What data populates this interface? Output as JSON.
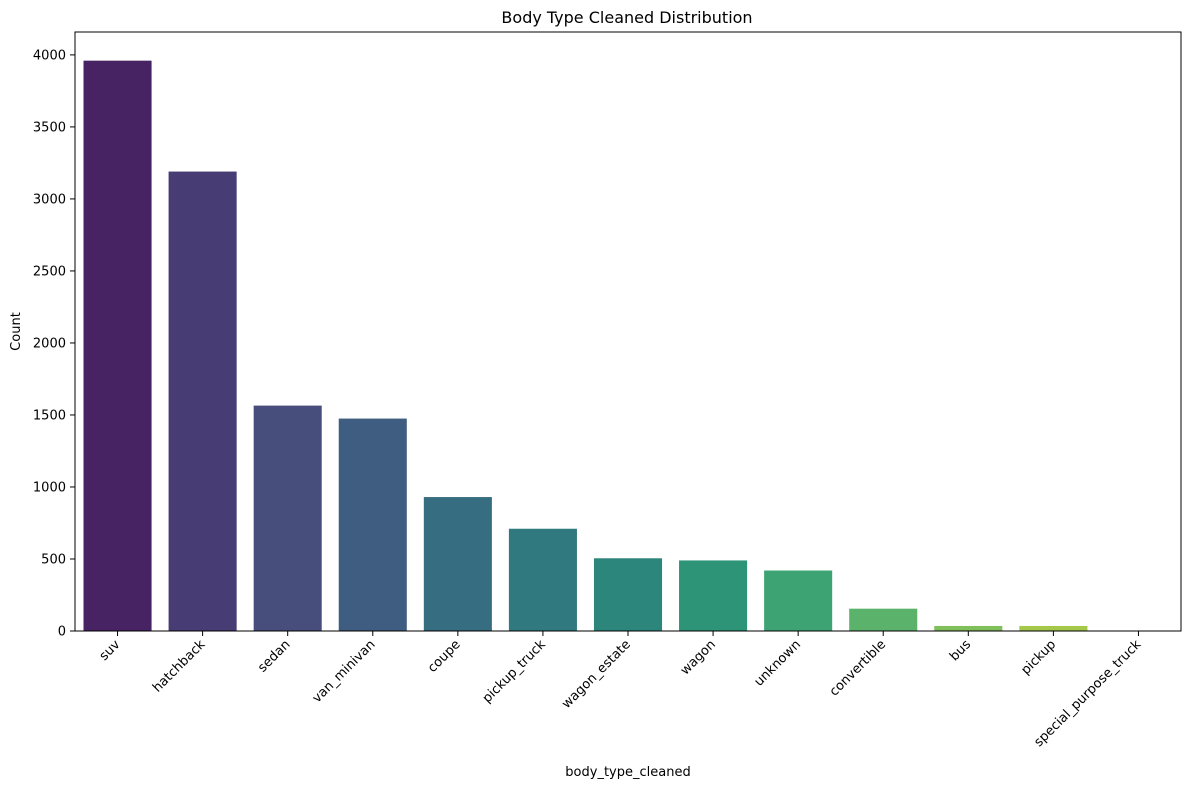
{
  "chart_data": {
    "type": "bar",
    "title": "Body Type Cleaned Distribution",
    "xlabel": "body_type_cleaned",
    "ylabel": "Count",
    "categories": [
      "suv",
      "hatchback",
      "sedan",
      "van_minivan",
      "coupe",
      "pickup_truck",
      "wagon_estate",
      "wagon",
      "unknown",
      "convertible",
      "bus",
      "pickup",
      "special_purpose_truck"
    ],
    "values": [
      3960,
      3190,
      1565,
      1475,
      930,
      710,
      505,
      490,
      420,
      155,
      35,
      35,
      2
    ],
    "ylim": [
      0,
      4159
    ],
    "yticks": [
      0,
      500,
      1000,
      1500,
      2000,
      2500,
      3000,
      3500,
      4000
    ],
    "grid": false,
    "colors": [
      "#482364",
      "#483c75",
      "#474e7c",
      "#3f5d80",
      "#376d81",
      "#30797f",
      "#2c867c",
      "#2e9478",
      "#3ea373",
      "#5bb26a",
      "#80bf5a",
      "#a4c94a",
      "#d1d03f"
    ]
  }
}
